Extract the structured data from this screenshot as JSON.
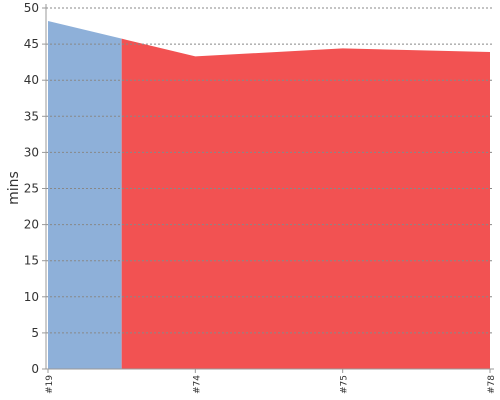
{
  "chart_data": {
    "type": "area",
    "y_label": "mins",
    "categories": [
      "#19",
      "#74",
      "#75",
      "#78"
    ],
    "series": [
      {
        "color": "#8eb0d9",
        "values": [
          48.2,
          null,
          null,
          null
        ]
      },
      {
        "color": "#f25252",
        "values": [
          null,
          43.3,
          44.4,
          43.9
        ]
      }
    ],
    "ylim": [
      0,
      50
    ],
    "yticks": [
      0,
      5,
      10,
      15,
      20,
      25,
      30,
      35,
      40,
      45,
      50
    ],
    "grid": true
  }
}
